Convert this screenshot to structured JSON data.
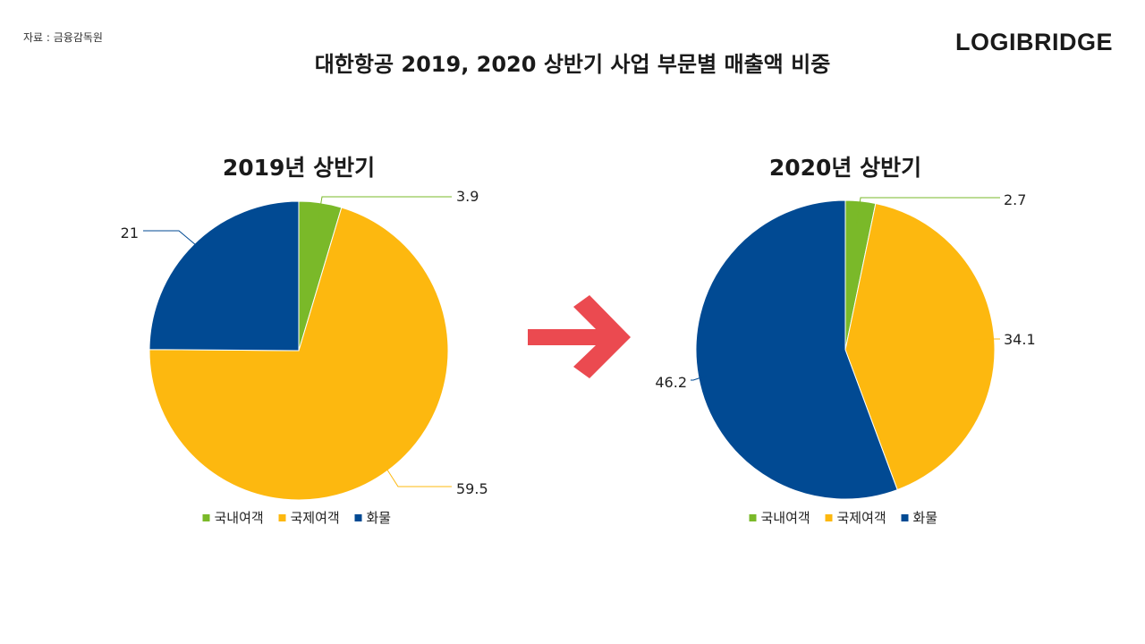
{
  "source": "자료 : 금융감독원",
  "brand": "LOGIBRIDGE",
  "title": "대한항공 2019, 2020 상반기 사업 부문별 매출액 비중",
  "arrow_icon": "right-arrow-icon",
  "colors": {
    "국내여객": "#7ab929",
    "국제여객": "#fdb80f",
    "화물": "#014a93",
    "arrow": "#eb4a50",
    "leader_line": "#b0b0b0"
  },
  "chart_data": [
    {
      "type": "pie",
      "title": "2019년 상반기",
      "categories": [
        "국내여객",
        "국제여객",
        "화물"
      ],
      "values": [
        3.9,
        59.5,
        21
      ],
      "value_labels": [
        "3.9",
        "59.5",
        "21"
      ],
      "legend": {
        "entries": [
          "국내여객",
          "국제여객",
          "화물"
        ],
        "placement": "bottom"
      }
    },
    {
      "type": "pie",
      "title": "2020년 상반기",
      "categories": [
        "국내여객",
        "국제여객",
        "화물"
      ],
      "values": [
        2.7,
        34.1,
        46.2
      ],
      "value_labels": [
        "2.7",
        "34.1",
        "46.2"
      ],
      "legend": {
        "entries": [
          "국내여객",
          "국제여객",
          "화물"
        ],
        "placement": "bottom"
      }
    }
  ]
}
